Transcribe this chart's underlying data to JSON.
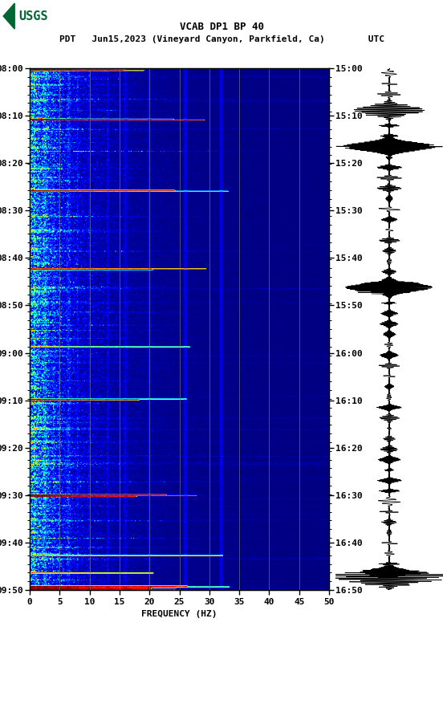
{
  "title_line1": "VCAB DP1 BP 40",
  "title_line2": "PDT   Jun15,2023 (Vineyard Canyon, Parkfield, Ca)        UTC",
  "xlabel": "FREQUENCY (HZ)",
  "freq_min": 0,
  "freq_max": 50,
  "freq_ticks": [
    0,
    5,
    10,
    15,
    20,
    25,
    30,
    35,
    40,
    45,
    50
  ],
  "left_time_labels": [
    "08:00",
    "08:10",
    "08:20",
    "08:30",
    "08:40",
    "08:50",
    "09:00",
    "09:10",
    "09:20",
    "09:30",
    "09:40",
    "09:50"
  ],
  "right_time_labels": [
    "15:00",
    "15:10",
    "15:20",
    "15:30",
    "15:40",
    "15:50",
    "16:00",
    "16:10",
    "16:20",
    "16:30",
    "16:40",
    "16:50"
  ],
  "bg_color": "white",
  "spectrogram_cmap": "jet",
  "grid_color": "#808080",
  "grid_alpha": 0.6,
  "fig_width": 5.52,
  "fig_height": 8.92,
  "n_time": 600,
  "n_freq": 500,
  "usgs_green": "#006633",
  "font_size_title": 9,
  "font_size_label": 8,
  "font_size_tick": 8
}
